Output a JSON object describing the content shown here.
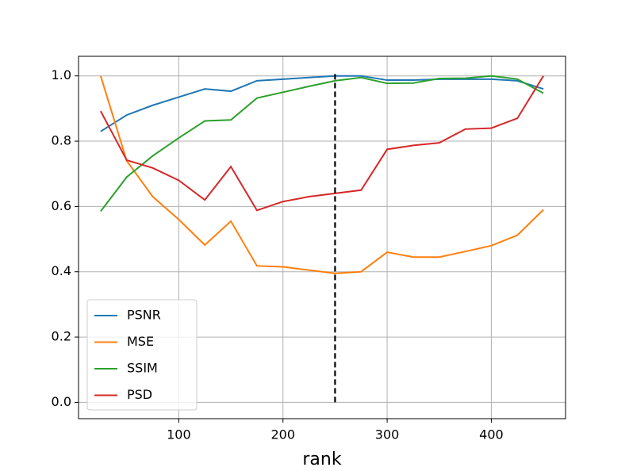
{
  "chart_data": {
    "type": "line",
    "xlabel": "rank",
    "x": [
      25,
      50,
      75,
      100,
      125,
      150,
      175,
      200,
      225,
      250,
      275,
      300,
      325,
      350,
      375,
      400,
      425,
      450
    ],
    "series": [
      {
        "name": "PSNR",
        "color": "#1f77b4",
        "values": [
          0.83,
          0.88,
          0.91,
          0.935,
          0.96,
          0.953,
          0.985,
          0.99,
          0.995,
          1.0,
          1.0,
          0.987,
          0.987,
          0.99,
          0.99,
          0.99,
          0.985,
          0.96
        ]
      },
      {
        "name": "MSE",
        "color": "#ff7f0e",
        "values": [
          1.0,
          0.74,
          0.63,
          0.56,
          0.482,
          0.555,
          0.418,
          0.415,
          0.405,
          0.395,
          0.4,
          0.46,
          0.445,
          0.445,
          0.462,
          0.48,
          0.512,
          0.59
        ]
      },
      {
        "name": "SSIM",
        "color": "#2ca02c",
        "values": [
          0.585,
          0.69,
          0.755,
          0.81,
          0.862,
          0.865,
          0.932,
          0.95,
          0.968,
          0.985,
          0.995,
          0.977,
          0.978,
          0.992,
          0.993,
          1.0,
          0.99,
          0.947
        ]
      },
      {
        "name": "PSD",
        "color": "#d62728",
        "values": [
          0.892,
          0.742,
          0.718,
          0.68,
          0.62,
          0.722,
          0.588,
          0.615,
          0.63,
          0.64,
          0.65,
          0.775,
          0.787,
          0.795,
          0.837,
          0.84,
          0.87,
          1.0
        ]
      }
    ],
    "vline": {
      "x": 250,
      "ymin": 0,
      "ymax": 1.01,
      "color": "#000000"
    },
    "xlim": [
      3.75,
      471.25
    ],
    "ylim": [
      -0.05,
      1.06
    ],
    "xticks": [
      100,
      200,
      300,
      400
    ],
    "yticks": [
      {
        "value": 0,
        "label": "0.0"
      },
      {
        "value": 0.2,
        "label": "0.2"
      },
      {
        "value": 0.4,
        "label": "0.4"
      },
      {
        "value": 0.6,
        "label": "0.6"
      },
      {
        "value": 0.8,
        "label": "0.8"
      },
      {
        "value": 1.0,
        "label": "1.0"
      }
    ],
    "grid": true,
    "legend": "lower left"
  }
}
